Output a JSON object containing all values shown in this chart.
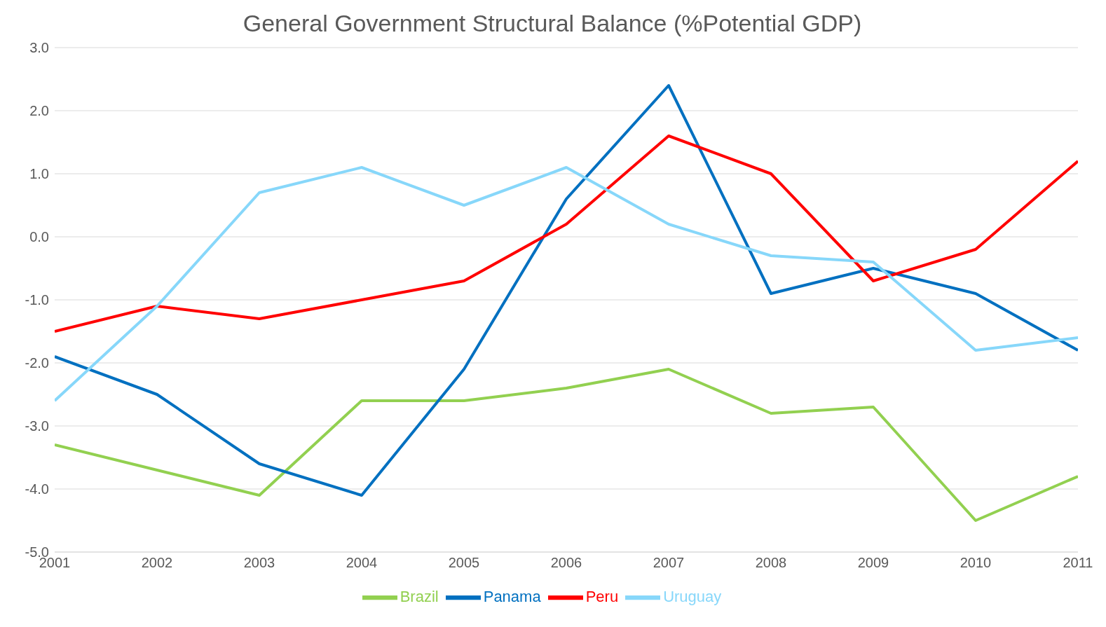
{
  "chart_data": {
    "type": "line",
    "title": "General Government Structural Balance (%Potential GDP)",
    "x": [
      2001,
      2002,
      2003,
      2004,
      2005,
      2006,
      2007,
      2008,
      2009,
      2010,
      2011
    ],
    "xlim": [
      2001,
      2011
    ],
    "xticks": [
      2001,
      2002,
      2003,
      2004,
      2005,
      2006,
      2007,
      2008,
      2009,
      2010,
      2011
    ],
    "ylim": [
      -5,
      3
    ],
    "yticks": [
      {
        "value": -5,
        "label": "-5.0"
      },
      {
        "value": -4,
        "label": "-4.0"
      },
      {
        "value": -3,
        "label": "-3.0"
      },
      {
        "value": -2,
        "label": "-2.0"
      },
      {
        "value": -1,
        "label": "-1.0"
      },
      {
        "value": 0,
        "label": "0.0"
      },
      {
        "value": 1,
        "label": "1.0"
      },
      {
        "value": 2,
        "label": "2.0"
      },
      {
        "value": 3,
        "label": "3.0"
      }
    ],
    "grid": "y",
    "legend": "bottom",
    "marker": "none",
    "line_style": "solid",
    "series": [
      {
        "name": "Brazil",
        "color": "#92d050",
        "values": [
          -3.3,
          -3.7,
          -4.1,
          -2.6,
          -2.6,
          -2.4,
          -2.1,
          -2.8,
          -2.7,
          -4.5,
          -3.8
        ]
      },
      {
        "name": "Panama",
        "color": "#0070c0",
        "values": [
          -1.9,
          -2.5,
          -3.6,
          -4.1,
          -2.1,
          0.6,
          2.4,
          -0.9,
          -0.5,
          -0.9,
          -1.8
        ]
      },
      {
        "name": "Peru",
        "color": "#ff0000",
        "values": [
          -1.5,
          -1.1,
          -1.3,
          -1.0,
          -0.7,
          0.2,
          1.6,
          1.0,
          -0.7,
          -0.2,
          1.2
        ]
      },
      {
        "name": "Uruguay",
        "color": "#87d7fa",
        "values": [
          -2.6,
          -1.1,
          0.7,
          1.1,
          0.5,
          1.1,
          0.2,
          -0.3,
          -0.4,
          -1.8,
          -1.6
        ]
      }
    ]
  }
}
